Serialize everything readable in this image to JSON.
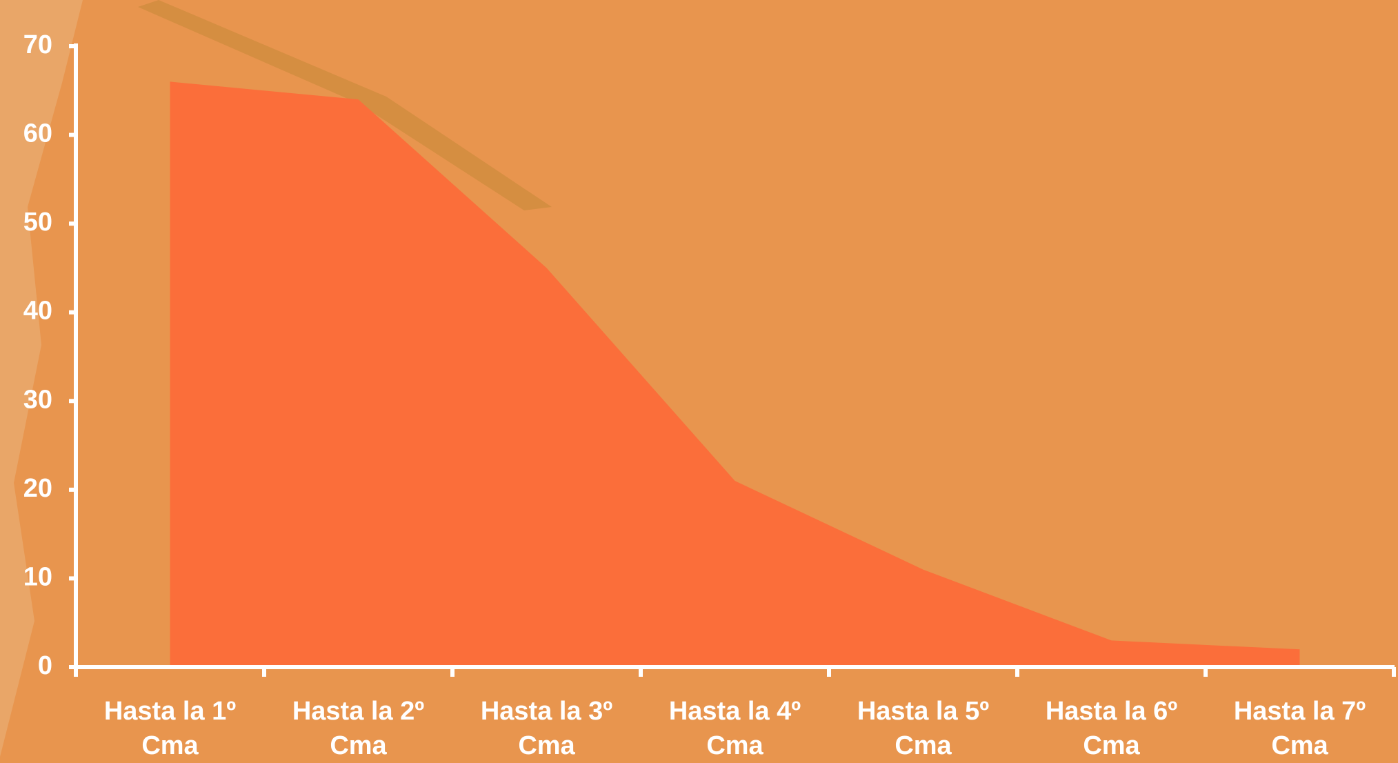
{
  "chart_data": {
    "type": "area",
    "categories": [
      "Hasta la 1º Cma",
      "Hasta la 2º Cma",
      "Hasta la 3º Cma",
      "Hasta la 4º Cma",
      "Hasta la 5º Cma",
      "Hasta la 6º Cma",
      "Hasta la 7º Cma"
    ],
    "values": [
      66,
      64,
      45,
      21,
      11,
      3,
      2
    ],
    "color": "#fb6e3a",
    "ylim": [
      0,
      70
    ],
    "yticks": [
      0,
      10,
      20,
      30,
      40,
      50,
      60,
      70
    ]
  }
}
